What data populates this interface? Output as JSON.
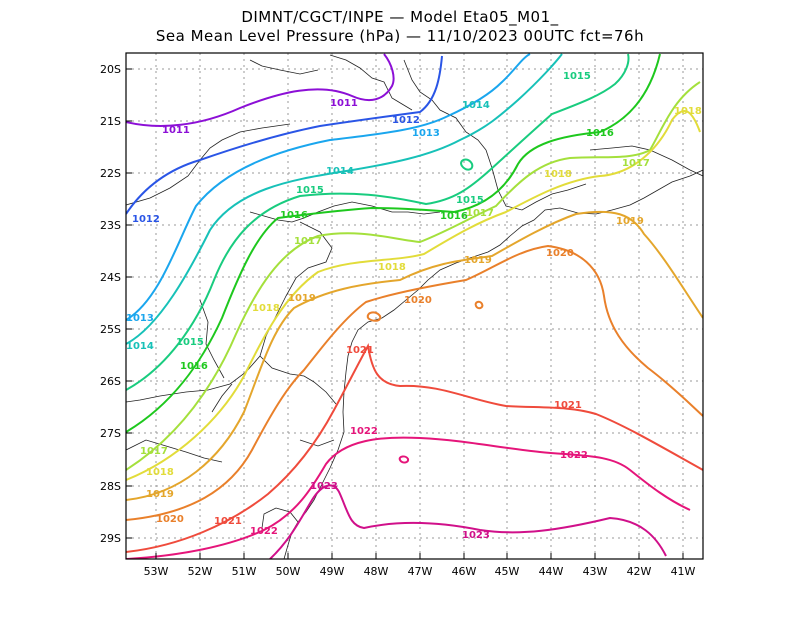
{
  "header": {
    "line1": "DIMNT/CGCT/INPE —  Model Eta05_M01_",
    "line2": "Sea Mean Level Pressure (hPa) — 11/10/2023 00UTC fct=76h"
  },
  "axes": {
    "lat_labels": [
      "20S",
      "21S",
      "22S",
      "23S",
      "24S",
      "25S",
      "26S",
      "27S",
      "28S",
      "29S"
    ],
    "lon_labels": [
      "53W",
      "52W",
      "51W",
      "50W",
      "49W",
      "48W",
      "47W",
      "46W",
      "45W",
      "44W",
      "43W",
      "42W",
      "41W"
    ]
  },
  "isobars": [
    {
      "value": "1011",
      "color": "#8c0fd6"
    },
    {
      "value": "1012",
      "color": "#2a55e6"
    },
    {
      "value": "1013",
      "color": "#1aa6ee"
    },
    {
      "value": "1014",
      "color": "#17c1b8"
    },
    {
      "value": "1015",
      "color": "#19cc7f"
    },
    {
      "value": "1016",
      "color": "#1ec81e"
    },
    {
      "value": "1017",
      "color": "#a4e03c"
    },
    {
      "value": "1018",
      "color": "#e2dc3a"
    },
    {
      "value": "1019",
      "color": "#e4a62c"
    },
    {
      "value": "1020",
      "color": "#e9802b"
    },
    {
      "value": "1021",
      "color": "#ef4b3c"
    },
    {
      "value": "1022",
      "color": "#e5157a"
    },
    {
      "value": "1023",
      "color": "#d0108a"
    }
  ]
}
